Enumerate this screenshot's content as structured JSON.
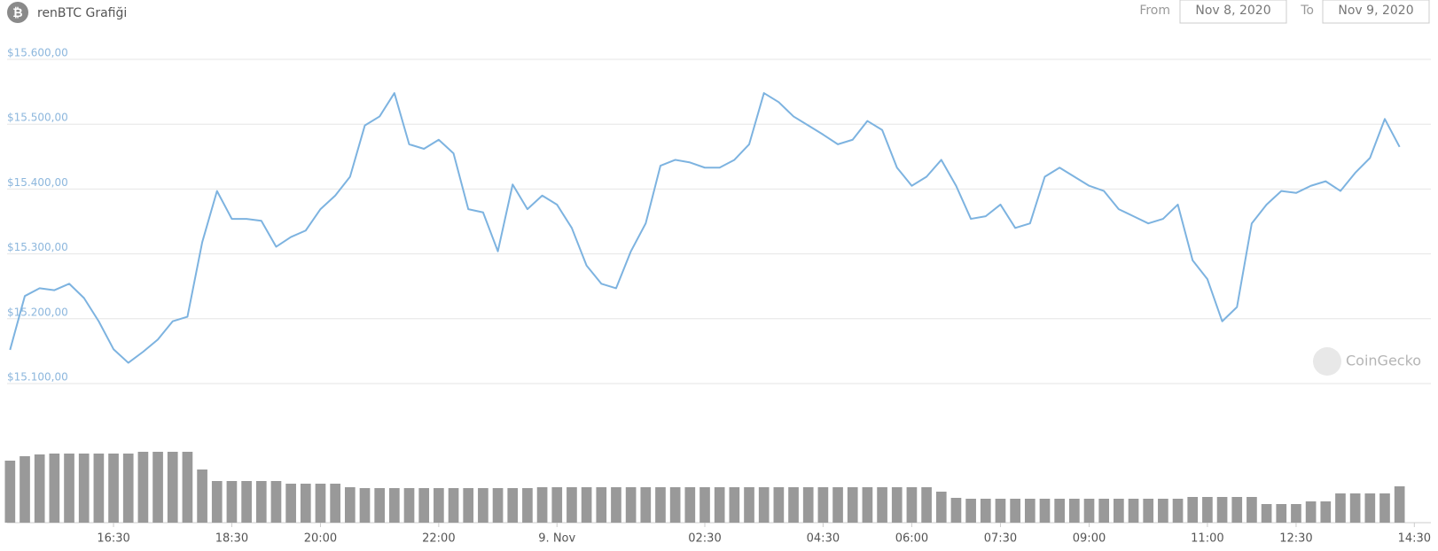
{
  "chart_data": {
    "type": "line",
    "title": "renBTC Grafiği",
    "date_range": {
      "from_label": "From",
      "from": "Nov 8, 2020",
      "to_label": "To",
      "to": "Nov 9, 2020"
    },
    "watermark": "CoinGecko",
    "x": [
      14.75,
      15,
      15.25,
      15.5,
      15.75,
      16,
      16.25,
      16.5,
      16.75,
      17,
      17.25,
      17.5,
      17.75,
      18,
      18.25,
      18.5,
      18.75,
      19,
      19.25,
      19.5,
      19.75,
      20,
      20.25,
      20.5,
      20.75,
      21,
      21.25,
      21.5,
      21.75,
      22,
      22.25,
      22.5,
      22.75,
      23,
      23.25,
      23.5,
      23.75,
      24,
      24.25,
      24.5,
      24.75,
      25,
      25.25,
      25.5,
      25.75,
      26,
      26.25,
      26.5,
      26.75,
      27,
      27.25,
      27.5,
      27.75,
      28,
      28.25,
      28.5,
      28.75,
      29,
      29.25,
      29.5,
      29.75,
      30,
      30.25,
      30.5,
      30.75,
      31,
      31.25,
      31.5,
      31.75,
      32,
      32.25,
      32.5,
      32.75,
      33,
      33.25,
      33.5,
      33.75,
      34,
      34.25,
      34.5,
      34.75,
      35,
      35.25,
      35.5,
      35.75,
      36,
      36.25,
      36.5,
      36.75,
      37,
      37.25,
      37.5,
      37.75,
      38,
      38.25
    ],
    "values": [
      15152,
      15235,
      15247,
      15244,
      15254,
      15232,
      15196,
      15153,
      15132,
      15149,
      15168,
      15196,
      15203,
      15318,
      15397,
      15354,
      15354,
      15351,
      15311,
      15326,
      15336,
      15369,
      15390,
      15419,
      15498,
      15512,
      15548,
      15469,
      15462,
      15476,
      15455,
      15369,
      15364,
      15304,
      15407,
      15369,
      15390,
      15376,
      15340,
      15282,
      15254,
      15247,
      15304,
      15347,
      15436,
      15445,
      15441,
      15433,
      15433,
      15445,
      15469,
      15548,
      15534,
      15512,
      15498,
      15484,
      15469,
      15476,
      15505,
      15491,
      15433,
      15405,
      15419,
      15445,
      15405,
      15354,
      15358,
      15376,
      15340,
      15347,
      15419,
      15433,
      15419,
      15405,
      15397,
      15369,
      15358,
      15347,
      15354,
      15376,
      15290,
      15261,
      15196,
      15218,
      15347,
      15376,
      15397,
      15394,
      15405,
      15412,
      15397,
      15425,
      15448,
      15508,
      15465
    ],
    "color": "#7db3e0",
    "volume": {
      "color": "#999999",
      "values": [
        70,
        75,
        77,
        78,
        78,
        78,
        78,
        78,
        78,
        80,
        80,
        80,
        80,
        60,
        47,
        47,
        47,
        47,
        47,
        44,
        44,
        44,
        44,
        40,
        39,
        39,
        39,
        39,
        39,
        39,
        39,
        39,
        39,
        39,
        39,
        39,
        40,
        40,
        40,
        40,
        40,
        40,
        40,
        40,
        40,
        40,
        40,
        40,
        40,
        40,
        40,
        40,
        40,
        40,
        40,
        40,
        40,
        40,
        40,
        40,
        40,
        40,
        40,
        35,
        28,
        27,
        27,
        27,
        27,
        27,
        27,
        27,
        27,
        27,
        27,
        27,
        27,
        27,
        27,
        27,
        29,
        29,
        29,
        29,
        29,
        21,
        21,
        21,
        24,
        24,
        33,
        33,
        33,
        33,
        41
      ]
    },
    "xlim": [
      14.7,
      38.78
    ],
    "ylim": [
      15100,
      15600
    ],
    "y2lim": [
      0,
      100
    ],
    "grid": true,
    "xticks": [
      {
        "value": 16.5,
        "label": "16:30"
      },
      {
        "value": 18.5,
        "label": "18:30"
      },
      {
        "value": 20,
        "label": "20:00"
      },
      {
        "value": 22,
        "label": "22:00"
      },
      {
        "value": 24,
        "label": "9. Nov"
      },
      {
        "value": 26.5,
        "label": "02:30"
      },
      {
        "value": 28.5,
        "label": "04:30"
      },
      {
        "value": 30,
        "label": "06:00"
      },
      {
        "value": 31.5,
        "label": "07:30"
      },
      {
        "value": 33,
        "label": "09:00"
      },
      {
        "value": 35,
        "label": "11:00"
      },
      {
        "value": 36.5,
        "label": "12:30"
      },
      {
        "value": 38.5,
        "label": "14:30"
      }
    ],
    "yticks": [
      {
        "value": 15100,
        "label": "$15.100,00"
      },
      {
        "value": 15200,
        "label": "$15.200,00"
      },
      {
        "value": 15300,
        "label": "$15.300,00"
      },
      {
        "value": 15400,
        "label": "$15.400,00"
      },
      {
        "value": 15500,
        "label": "$15.500,00"
      },
      {
        "value": 15600,
        "label": "$15.600,00"
      }
    ]
  }
}
